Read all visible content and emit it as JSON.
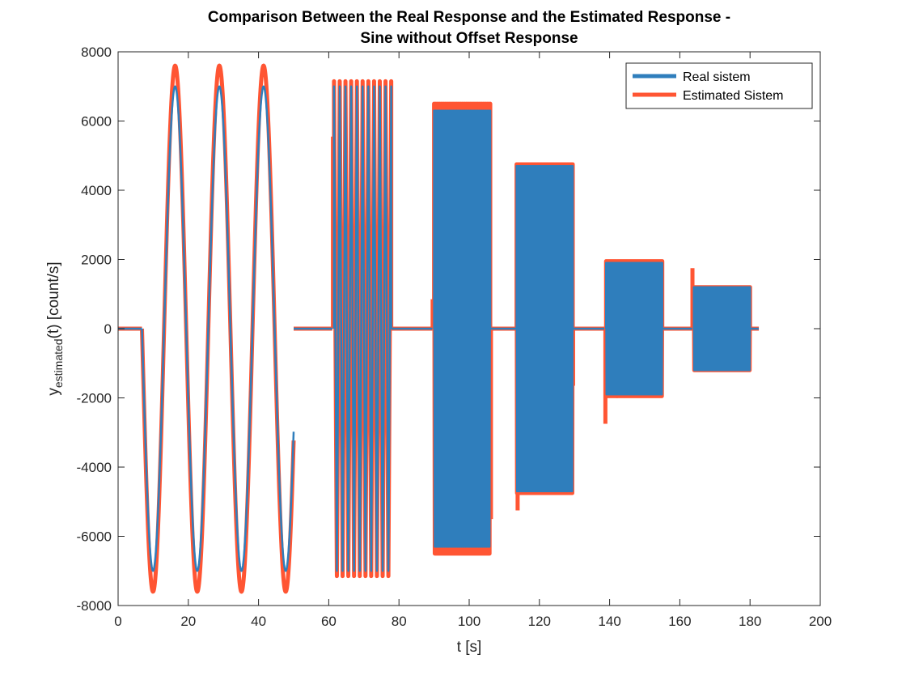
{
  "chart_data": {
    "type": "line",
    "title": [
      "Comparison Between the Real Response and the Estimated Response -",
      "Sine without Offset Response"
    ],
    "xlabel": "t [s]",
    "ylabel": {
      "base": "y",
      "subscript": "estimated",
      "suffix": "(t) [count/s]"
    },
    "xlim": [
      0,
      200
    ],
    "ylim": [
      -8000,
      8000
    ],
    "xticks": [
      0,
      20,
      40,
      60,
      80,
      100,
      120,
      140,
      160,
      180,
      200
    ],
    "yticks": [
      -8000,
      -6000,
      -4000,
      -2000,
      0,
      2000,
      4000,
      6000,
      8000
    ],
    "grid": false,
    "legend_position": "top-right",
    "series": [
      {
        "name": "Real sistem",
        "color": "#2f7ebc",
        "segments": [
          {
            "kind": "zero",
            "t0": 0,
            "t1": 6.8
          },
          {
            "kind": "sine",
            "t0": 6.8,
            "t1": 50,
            "amp": 7000,
            "freq": 0.0794,
            "phase": 3.14159
          },
          {
            "kind": "zero",
            "t0": 50,
            "t1": 61
          },
          {
            "kind": "burst",
            "t0": 61.5,
            "t1": 77.8,
            "min": -7000,
            "max": 7000,
            "cycles": 10
          },
          {
            "kind": "zero",
            "t0": 77.8,
            "t1": 89.5
          },
          {
            "kind": "burst",
            "t0": 90,
            "t1": 106,
            "min": -6300,
            "max": 6300,
            "cycles": 40
          },
          {
            "kind": "zero",
            "t0": 106,
            "t1": 113.5
          },
          {
            "kind": "burst",
            "t0": 113.5,
            "t1": 129.5,
            "min": -4700,
            "max": 4700,
            "cycles": 60
          },
          {
            "kind": "zero",
            "t0": 129.5,
            "t1": 138.5
          },
          {
            "kind": "burst",
            "t0": 139,
            "t1": 155,
            "min": -1900,
            "max": 1900,
            "cycles": 70
          },
          {
            "kind": "zero",
            "t0": 155,
            "t1": 163.5
          },
          {
            "kind": "burst",
            "t0": 164,
            "t1": 180,
            "min": -1200,
            "max": 1200,
            "cycles": 70
          },
          {
            "kind": "zero",
            "t0": 180,
            "t1": 182.5
          }
        ]
      },
      {
        "name": "Estimated Sistem",
        "color": "#ff5533",
        "segments": [
          {
            "kind": "zero",
            "t0": 0,
            "t1": 6.8
          },
          {
            "kind": "sine",
            "t0": 6.8,
            "t1": 50,
            "amp": 7600,
            "freq": 0.0794,
            "phase": 3.14159
          },
          {
            "kind": "zero",
            "t0": 50,
            "t1": 61
          },
          {
            "kind": "spike",
            "t": 61.2,
            "v": 5550
          },
          {
            "kind": "burst",
            "t0": 61.5,
            "t1": 77.8,
            "min": -7150,
            "max": 7150,
            "cycles": 10
          },
          {
            "kind": "zero",
            "t0": 77.8,
            "t1": 89.5
          },
          {
            "kind": "spike",
            "t": 89.6,
            "v": 850
          },
          {
            "kind": "burst",
            "t0": 90,
            "t1": 106,
            "min": -6500,
            "max": 6500,
            "cycles": 40
          },
          {
            "kind": "spike",
            "t": 106.2,
            "v": -5500
          },
          {
            "kind": "zero",
            "t0": 106,
            "t1": 113.5
          },
          {
            "kind": "spike",
            "t": 113.8,
            "v": -5250
          },
          {
            "kind": "burst",
            "t0": 113.5,
            "t1": 129.5,
            "min": -4750,
            "max": 4750,
            "cycles": 60
          },
          {
            "kind": "spike",
            "t": 129.6,
            "v": -1650
          },
          {
            "kind": "zero",
            "t0": 129.5,
            "t1": 138.5
          },
          {
            "kind": "spike",
            "t": 138.8,
            "v": -2750
          },
          {
            "kind": "burst",
            "t0": 139,
            "t1": 155,
            "min": -1950,
            "max": 1950,
            "cycles": 70
          },
          {
            "kind": "zero",
            "t0": 155,
            "t1": 163.5
          },
          {
            "kind": "spike",
            "t": 163.6,
            "v": 1750
          },
          {
            "kind": "burst",
            "t0": 164,
            "t1": 180,
            "min": -1200,
            "max": 1200,
            "cycles": 70
          },
          {
            "kind": "zero",
            "t0": 180,
            "t1": 182.5
          }
        ]
      }
    ]
  }
}
